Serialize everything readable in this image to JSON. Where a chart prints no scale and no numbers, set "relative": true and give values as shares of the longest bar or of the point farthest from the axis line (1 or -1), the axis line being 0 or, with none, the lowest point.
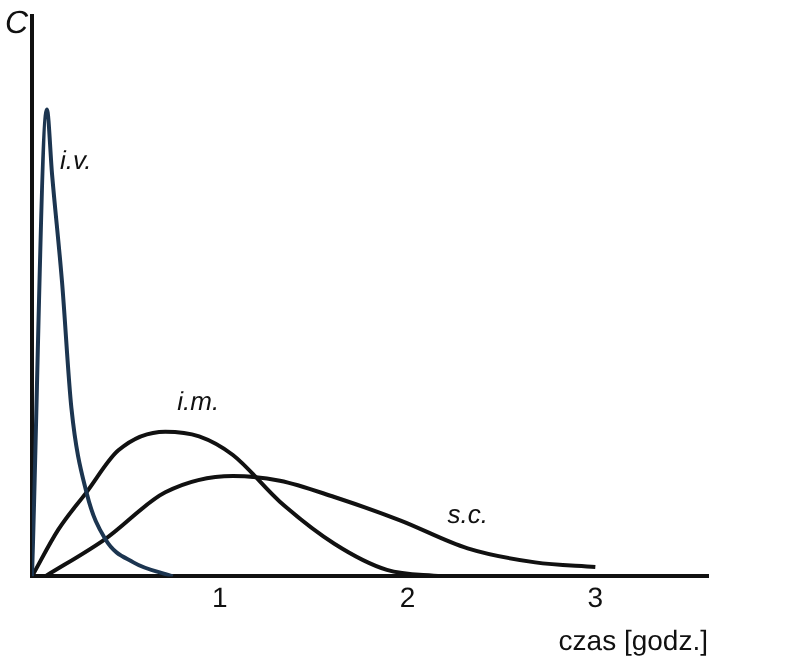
{
  "chart_data": {
    "type": "line",
    "relative": true,
    "ylabel": "C",
    "xlabel": "czas [godz.]",
    "xlim": [
      0,
      3.6
    ],
    "xticks": [
      1,
      2,
      3
    ],
    "tick_labels": "x",
    "grid": false,
    "legend": false,
    "marker": "none",
    "line_style": "solid",
    "series": [
      {
        "name": "i.v.",
        "color": "#1c3550",
        "x": [
          0,
          0.079,
          0.107,
          0.16,
          0.21,
          0.29,
          0.39,
          0.54,
          0.75
        ],
        "values": [
          0,
          1,
          0.86,
          0.63,
          0.36,
          0.18,
          0.08,
          0.03,
          0
        ]
      },
      {
        "name": "i.m.",
        "color": "#111111",
        "x": [
          0,
          0.14,
          0.29,
          0.46,
          0.71,
          0.89,
          1.07,
          1.32,
          1.61,
          1.89,
          2.18
        ],
        "values": [
          0,
          0.1,
          0.18,
          0.27,
          0.31,
          0.3,
          0.26,
          0.16,
          0.07,
          0.014,
          0
        ]
      },
      {
        "name": "s.c.",
        "color": "#111111",
        "x": [
          0.07,
          0.39,
          0.71,
          1.07,
          1.32,
          1.61,
          1.96,
          2.32,
          2.68,
          3.0
        ],
        "values": [
          0,
          0.08,
          0.18,
          0.215,
          0.205,
          0.17,
          0.12,
          0.06,
          0.03,
          0.02
        ]
      }
    ]
  }
}
